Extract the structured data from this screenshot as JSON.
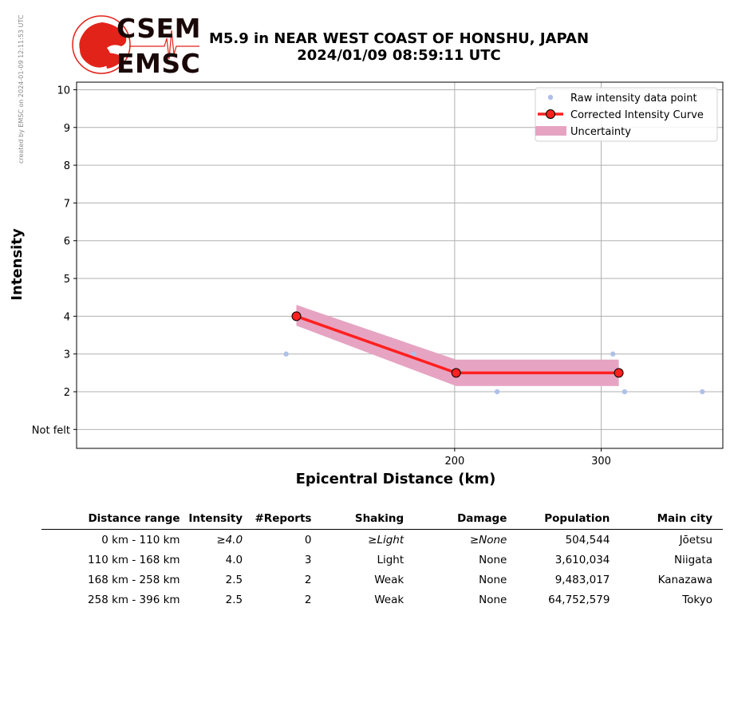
{
  "side_note": "created by EMSC on 2024-01-09 12:11:53 UTC",
  "logo": {
    "top": "CSEM",
    "bottom": "EMSC",
    "color": "#e2231a"
  },
  "title": {
    "line1": "M5.9 in NEAR WEST COAST OF HONSHU, JAPAN",
    "line2": "2024/01/09 08:59:11 UTC"
  },
  "chart_data": {
    "type": "line",
    "xlabel": "Epicentral Distance (km)",
    "ylabel": "Intensity",
    "xlim": [
      -58,
      383
    ],
    "ylim": [
      0.5,
      10.2
    ],
    "x_ticks": [
      200,
      300
    ],
    "y_ticks": [
      {
        "value": 1,
        "label": "Not felt"
      },
      {
        "value": 2,
        "label": "2"
      },
      {
        "value": 3,
        "label": "3"
      },
      {
        "value": 4,
        "label": "4"
      },
      {
        "value": 5,
        "label": "5"
      },
      {
        "value": 6,
        "label": "6"
      },
      {
        "value": 7,
        "label": "7"
      },
      {
        "value": 8,
        "label": "8"
      },
      {
        "value": 9,
        "label": "9"
      },
      {
        "value": 10,
        "label": "10"
      }
    ],
    "grid": true,
    "legend_position": "top-right",
    "series": [
      {
        "name": "Raw intensity data point",
        "kind": "scatter",
        "color": "#aec0e8",
        "points": [
          [
            85,
            3
          ],
          [
            172,
            3
          ],
          [
            229,
            2
          ],
          [
            308,
            3
          ],
          [
            316,
            2
          ],
          [
            369,
            2
          ]
        ]
      },
      {
        "name": "Corrected Intensity Curve",
        "kind": "line",
        "color": "#ff2020",
        "points": [
          [
            92,
            4.0
          ],
          [
            201,
            2.5
          ],
          [
            312,
            2.5
          ]
        ]
      },
      {
        "name": "Uncertainty",
        "kind": "band",
        "color": "#e6a4c2",
        "points": [
          [
            92,
            3.75,
            4.3
          ],
          [
            201,
            2.15,
            2.85
          ],
          [
            312,
            2.15,
            2.85
          ]
        ]
      }
    ]
  },
  "table": {
    "headers": [
      "Distance range",
      "Intensity",
      "#Reports",
      "Shaking",
      "Damage",
      "Population",
      "Main city"
    ],
    "rows": [
      [
        "0 km -  110 km",
        "≥4.0",
        "0",
        "≥Light",
        "≥None",
        "504,544",
        "Jōetsu"
      ],
      [
        "110 km -  168 km",
        "4.0",
        "3",
        "Light",
        "None",
        "3,610,034",
        "Niigata"
      ],
      [
        "168 km -  258 km",
        "2.5",
        "2",
        "Weak",
        "None",
        "9,483,017",
        "Kanazawa"
      ],
      [
        "258 km -  396 km",
        "2.5",
        "2",
        "Weak",
        "None",
        "64,752,579",
        "Tokyo"
      ]
    ]
  }
}
